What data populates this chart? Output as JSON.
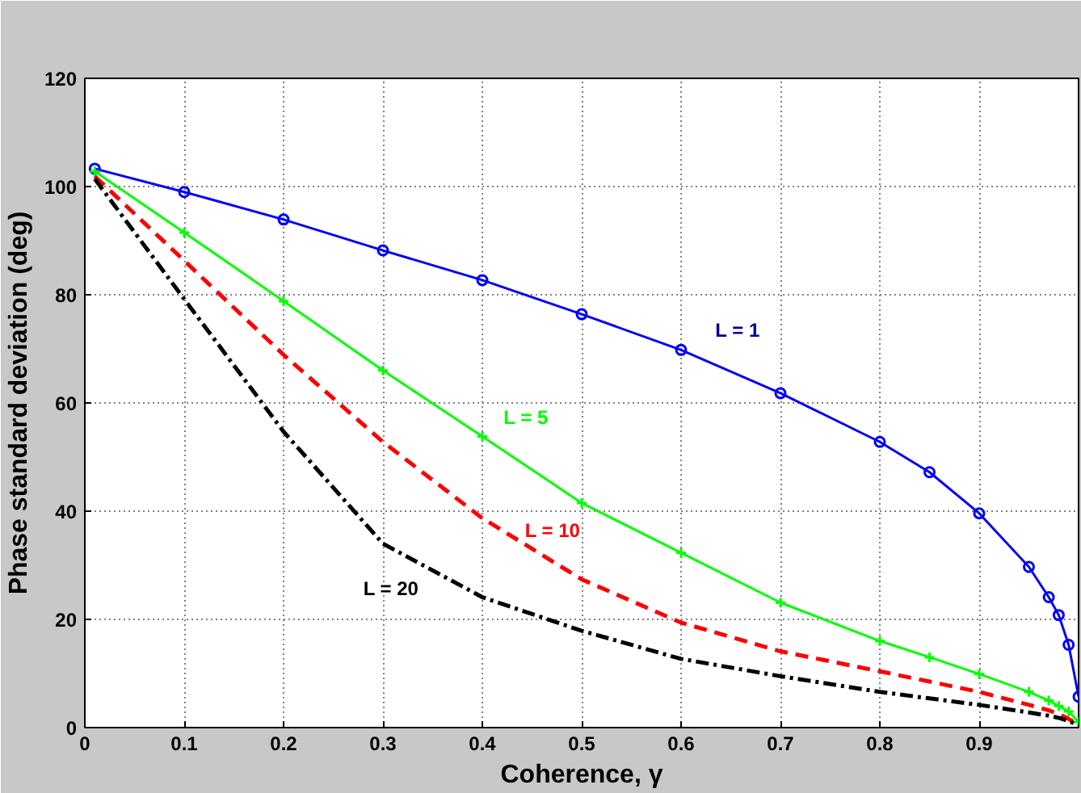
{
  "chart_data": {
    "type": "line",
    "xlabel": "Coherence, γ",
    "ylabel": "Phase standard deviation (deg)",
    "x": [
      0.01,
      0.1,
      0.2,
      0.3,
      0.4,
      0.5,
      0.6,
      0.7,
      0.8,
      0.85,
      0.9,
      0.95,
      0.97,
      0.98,
      0.99,
      1.0
    ],
    "series": [
      {
        "name": "L = 1",
        "color": "#0000ff",
        "marker": "circle",
        "line_style": "solid",
        "values": [
          103.3,
          99.0,
          93.9,
          88.2,
          82.7,
          76.4,
          69.8,
          61.8,
          52.8,
          47.2,
          39.6,
          29.7,
          24.1,
          20.8,
          15.3,
          5.7
        ]
      },
      {
        "name": "L = 5",
        "color": "#00ff00",
        "marker": "cross",
        "line_style": "solid",
        "values": [
          102.8,
          91.5,
          78.8,
          66.0,
          53.8,
          41.5,
          32.3,
          23.1,
          16.0,
          13.0,
          9.9,
          6.6,
          5.0,
          4.0,
          3.0,
          1.0
        ]
      },
      {
        "name": "L = 10",
        "color": "#ff0000",
        "marker": "none",
        "line_style": "dashed",
        "values": [
          101.9,
          86.3,
          68.9,
          52.8,
          38.7,
          27.4,
          19.4,
          14.1,
          10.4,
          8.5,
          6.6,
          4.2,
          3.2,
          2.5,
          1.6,
          0.5
        ]
      },
      {
        "name": "L = 20",
        "color": "#000000",
        "marker": "none",
        "line_style": "dashdot",
        "values": [
          101.4,
          79.2,
          54.7,
          34.0,
          24.1,
          17.9,
          12.7,
          9.5,
          6.6,
          5.4,
          4.2,
          2.8,
          2.2,
          1.8,
          1.2,
          0.5
        ]
      }
    ],
    "xlim": [
      0,
      1
    ],
    "ylim": [
      0,
      120
    ],
    "xticks": [
      0,
      0.1,
      0.2,
      0.3,
      0.4,
      0.5,
      0.6,
      0.7,
      0.8,
      0.9
    ],
    "yticks": [
      0,
      20,
      40,
      60,
      80,
      100,
      120
    ],
    "grid": true
  }
}
